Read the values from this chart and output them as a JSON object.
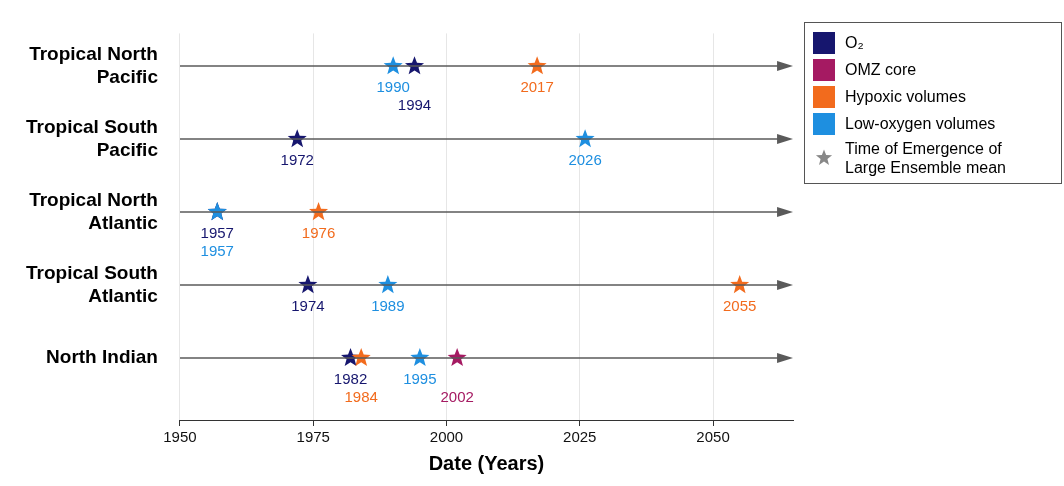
{
  "chart_data": {
    "type": "scatter",
    "orientation": "horizontal",
    "marker": "star",
    "xlabel": "Date (Years)",
    "categories": [
      "Tropical North Pacific",
      "Tropical South Pacific",
      "Tropical North Atlantic",
      "Tropical South Atlantic",
      "North Indian"
    ],
    "series": [
      {
        "name": "O₂",
        "color": "#16166e",
        "values": [
          1994,
          1972,
          1957,
          1974,
          1982
        ]
      },
      {
        "name": "OMZ core",
        "color": "#a51a62",
        "values": [
          null,
          null,
          null,
          null,
          2002
        ]
      },
      {
        "name": "Hypoxic volumes",
        "color": "#f26b1d",
        "values": [
          2017,
          null,
          1976,
          2055,
          1984
        ]
      },
      {
        "name": "Low-oxygen volumes",
        "color": "#1e8fe0",
        "values": [
          1990,
          2026,
          1957,
          1989,
          1995
        ]
      }
    ],
    "xlim": [
      1950,
      2065
    ],
    "xticks": [
      1950,
      1975,
      2000,
      2025,
      2050
    ],
    "grid": "x",
    "legend": "top right",
    "data_labels": true,
    "annotations": [
      "Time of Emergence of Large Ensemble mean"
    ]
  }
}
